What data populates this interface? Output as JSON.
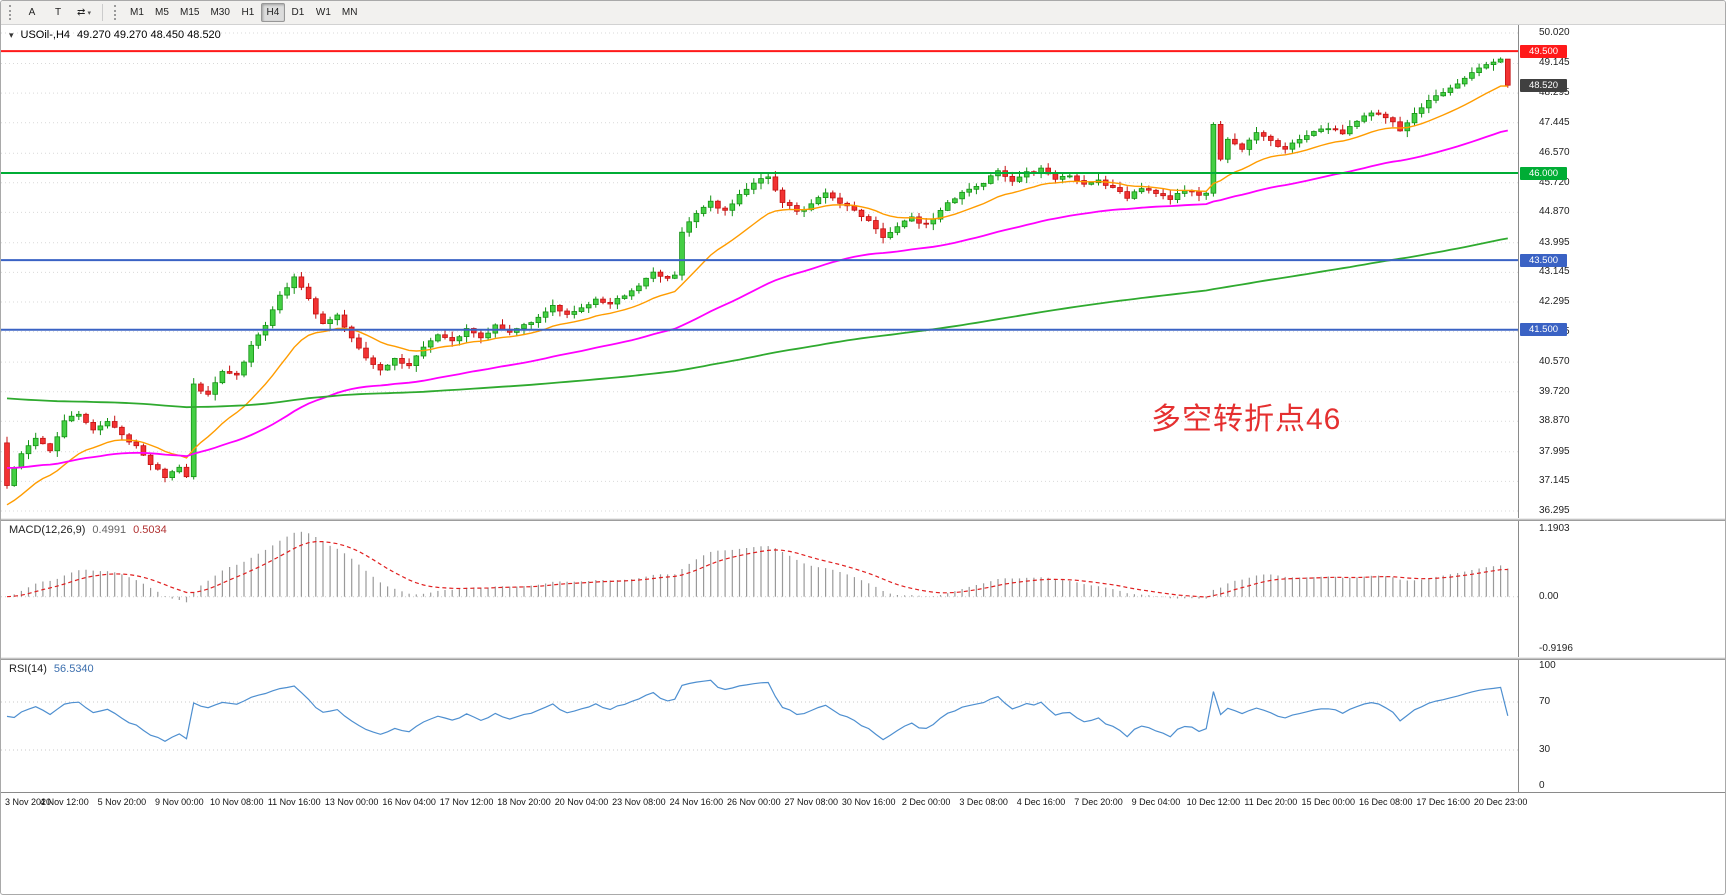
{
  "toolbar": {
    "tools": [
      {
        "name": "pointer-tool-button",
        "label": "A",
        "dropdown": false
      },
      {
        "name": "text-label-tool-button",
        "label": "T",
        "dropdown": false
      },
      {
        "name": "cycle-symbols-button",
        "label": "⇄",
        "dropdown": true
      }
    ],
    "timeframes": [
      "M1",
      "M5",
      "M15",
      "M30",
      "H1",
      "H4",
      "D1",
      "W1",
      "MN"
    ],
    "active_timeframe": "H4"
  },
  "chart": {
    "title": "USOil-,H4",
    "ohlc": "49.270 49.270 48.450 48.520"
  },
  "chart_data": {
    "type": "candlestick",
    "symbol": "USOil-",
    "timeframe": "H4",
    "title_ohlc": {
      "open": "49.270",
      "high": "49.270",
      "low": "48.450",
      "close": "48.520"
    },
    "price_axis_ticks": [
      "50.020",
      "49.145",
      "48.295",
      "47.445",
      "46.570",
      "45.720",
      "44.870",
      "43.995",
      "43.145",
      "42.295",
      "41.445",
      "40.570",
      "39.720",
      "38.870",
      "37.995",
      "37.145",
      "36.295"
    ],
    "price_range": {
      "min": 36.295,
      "max": 50.02
    },
    "time_labels": [
      "3 Nov 2020",
      "4 Nov 12:00",
      "5 Nov 20:00",
      "9 Nov 00:00",
      "10 Nov 08:00",
      "11 Nov 16:00",
      "13 Nov 00:00",
      "16 Nov 04:00",
      "17 Nov 12:00",
      "18 Nov 20:00",
      "20 Nov 04:00",
      "23 Nov 08:00",
      "24 Nov 16:00",
      "26 Nov 00:00",
      "27 Nov 08:00",
      "30 Nov 16:00",
      "2 Dec 00:00",
      "3 Dec 08:00",
      "4 Dec 16:00",
      "7 Dec 20:00",
      "9 Dec 04:00",
      "10 Dec 12:00",
      "11 Dec 20:00",
      "15 Dec 00:00",
      "16 Dec 08:00",
      "17 Dec 16:00",
      "20 Dec 23:00"
    ],
    "candle_count": 210,
    "candles_per_label": 8,
    "first_open": 38.25,
    "last_candle": {
      "open": 49.27,
      "high": 49.27,
      "low": 48.45,
      "close": 48.52
    },
    "close_path": [
      [
        0,
        37.05
      ],
      [
        1,
        37.55
      ],
      [
        2,
        37.9
      ],
      [
        4,
        38.35
      ],
      [
        6,
        38.05
      ],
      [
        8,
        38.85
      ],
      [
        10,
        39.1
      ],
      [
        12,
        38.6
      ],
      [
        14,
        38.9
      ],
      [
        16,
        38.5
      ],
      [
        18,
        38.15
      ],
      [
        20,
        37.65
      ],
      [
        22,
        37.3
      ],
      [
        24,
        37.55
      ],
      [
        25,
        37.3
      ],
      [
        26,
        39.9
      ],
      [
        28,
        39.65
      ],
      [
        30,
        40.35
      ],
      [
        32,
        40.15
      ],
      [
        34,
        41.05
      ],
      [
        36,
        41.6
      ],
      [
        38,
        42.45
      ],
      [
        40,
        43.05
      ],
      [
        42,
        42.35
      ],
      [
        44,
        41.65
      ],
      [
        46,
        41.95
      ],
      [
        48,
        41.25
      ],
      [
        50,
        40.7
      ],
      [
        52,
        40.35
      ],
      [
        54,
        40.65
      ],
      [
        56,
        40.5
      ],
      [
        58,
        41.0
      ],
      [
        60,
        41.35
      ],
      [
        62,
        41.15
      ],
      [
        64,
        41.5
      ],
      [
        66,
        41.3
      ],
      [
        68,
        41.6
      ],
      [
        70,
        41.4
      ],
      [
        72,
        41.6
      ],
      [
        74,
        41.9
      ],
      [
        76,
        42.2
      ],
      [
        78,
        41.9
      ],
      [
        80,
        42.1
      ],
      [
        82,
        42.4
      ],
      [
        84,
        42.2
      ],
      [
        86,
        42.5
      ],
      [
        88,
        42.8
      ],
      [
        90,
        43.15
      ],
      [
        92,
        43.0
      ],
      [
        93,
        43.05
      ],
      [
        94,
        44.3
      ],
      [
        96,
        44.85
      ],
      [
        98,
        45.15
      ],
      [
        100,
        44.9
      ],
      [
        102,
        45.4
      ],
      [
        104,
        45.7
      ],
      [
        106,
        45.9
      ],
      [
        108,
        45.2
      ],
      [
        110,
        44.85
      ],
      [
        112,
        45.1
      ],
      [
        114,
        45.4
      ],
      [
        116,
        45.15
      ],
      [
        118,
        44.95
      ],
      [
        120,
        44.6
      ],
      [
        122,
        44.1
      ],
      [
        124,
        44.45
      ],
      [
        126,
        44.7
      ],
      [
        128,
        44.5
      ],
      [
        130,
        44.9
      ],
      [
        132,
        45.3
      ],
      [
        134,
        45.55
      ],
      [
        136,
        45.75
      ],
      [
        138,
        46.1
      ],
      [
        140,
        45.8
      ],
      [
        142,
        46.0
      ],
      [
        144,
        46.1
      ],
      [
        146,
        45.85
      ],
      [
        148,
        45.95
      ],
      [
        150,
        45.7
      ],
      [
        152,
        45.8
      ],
      [
        154,
        45.55
      ],
      [
        156,
        45.3
      ],
      [
        158,
        45.55
      ],
      [
        160,
        45.45
      ],
      [
        162,
        45.25
      ],
      [
        164,
        45.5
      ],
      [
        166,
        45.4
      ],
      [
        167,
        45.45
      ],
      [
        168,
        47.35
      ],
      [
        169,
        46.4
      ],
      [
        170,
        46.95
      ],
      [
        172,
        46.7
      ],
      [
        174,
        47.15
      ],
      [
        176,
        46.9
      ],
      [
        178,
        46.7
      ],
      [
        180,
        47.0
      ],
      [
        182,
        47.2
      ],
      [
        184,
        47.3
      ],
      [
        186,
        47.1
      ],
      [
        188,
        47.5
      ],
      [
        190,
        47.7
      ],
      [
        192,
        47.6
      ],
      [
        194,
        47.25
      ],
      [
        196,
        47.7
      ],
      [
        198,
        48.1
      ],
      [
        200,
        48.3
      ],
      [
        202,
        48.55
      ],
      [
        204,
        48.9
      ],
      [
        206,
        49.1
      ],
      [
        208,
        49.27
      ],
      [
        209,
        48.52
      ]
    ],
    "levels": [
      {
        "value": 49.5,
        "label": "49.500",
        "color": "#ff1a1a"
      },
      {
        "value": 46.0,
        "label": "46.000",
        "color": "#00ad35"
      },
      {
        "value": 43.5,
        "label": "43.500",
        "color": "#3a62c4"
      },
      {
        "value": 41.5,
        "label": "41.500",
        "color": "#3a62c4"
      }
    ],
    "current_price": {
      "value": 48.52,
      "label": "48.520",
      "color": "#404040"
    },
    "candle_colors": {
      "up_fill": "#44cf44",
      "up_stroke": "#149114",
      "down_fill": "#f23232",
      "down_stroke": "#c31111"
    },
    "ma_lines": [
      {
        "name": "ma-fast-orange",
        "color": "#ff9c00",
        "start": 36.4,
        "period": 16
      },
      {
        "name": "ma-mid-magenta",
        "color": "#ff00ff",
        "start": 37.55,
        "period": 60
      },
      {
        "name": "ma-slow-green",
        "color": "#2faa2f",
        "start": 39.55,
        "period": 240
      }
    ],
    "annotation": {
      "text": "多空转折点46",
      "color": "#e53030"
    },
    "macd": {
      "label": "MACD(12,26,9)",
      "value_main": "0.4991",
      "value_signal": "0.5034",
      "axis_ticks": [
        "1.1903",
        "0.00",
        "-0.9196"
      ],
      "max": 1.1903,
      "min": -0.9196,
      "fast": 12,
      "slow": 26,
      "signal": 9
    },
    "rsi": {
      "label": "RSI(14)",
      "value": "56.5340",
      "axis_ticks": [
        "100",
        "70",
        "30",
        "0"
      ],
      "levels": [
        70,
        30
      ],
      "max": 100,
      "min": 0,
      "period": 14
    }
  }
}
